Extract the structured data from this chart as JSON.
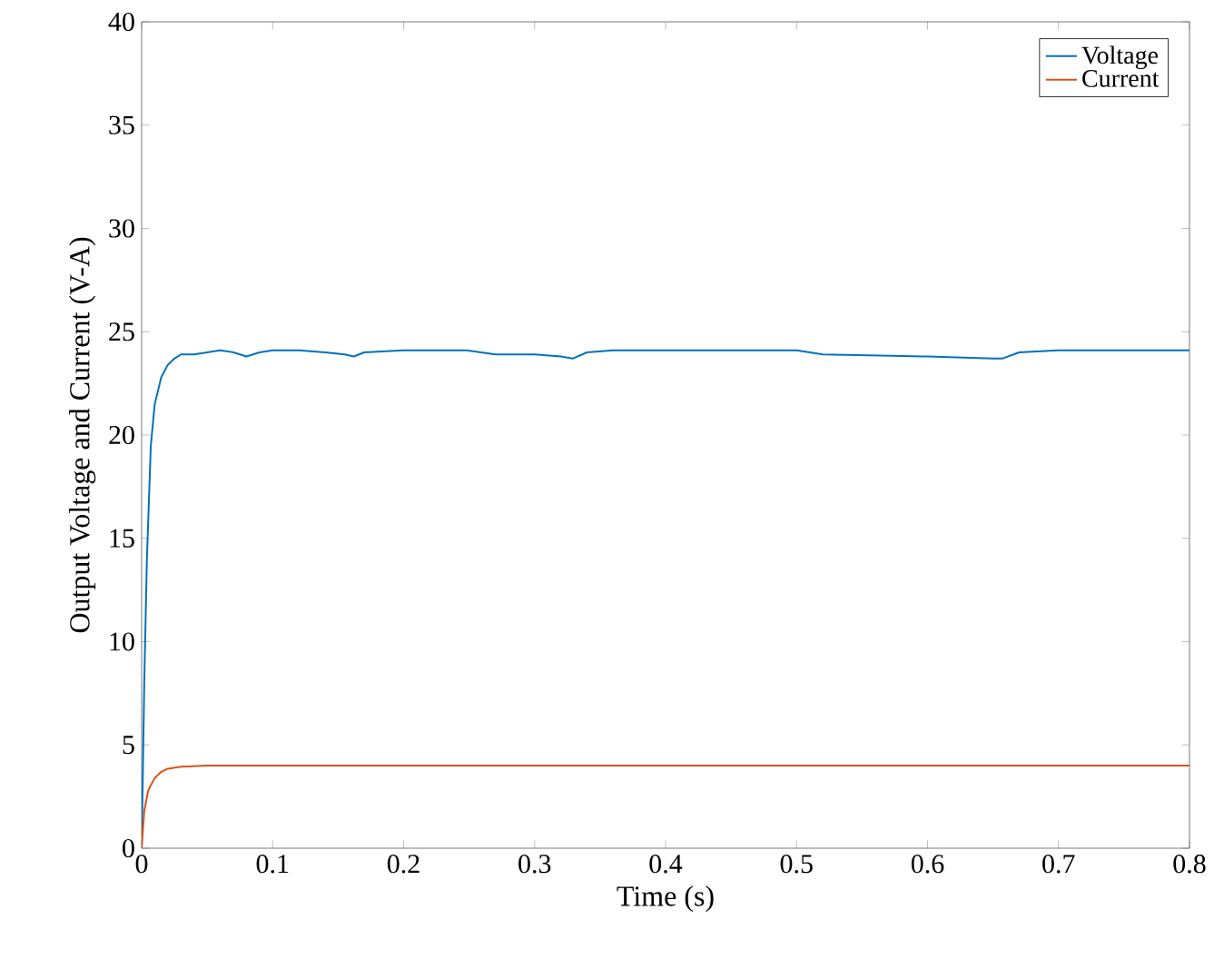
{
  "chart_data": {
    "type": "line",
    "xlabel": "Time (s)",
    "ylabel": "Output Voltage and Current (V-A)",
    "xlim": [
      0,
      0.8
    ],
    "ylim": [
      0,
      40
    ],
    "xticks": [
      0,
      0.1,
      0.2,
      0.3,
      0.4,
      0.5,
      0.6,
      0.7,
      0.8
    ],
    "yticks": [
      0,
      5,
      10,
      15,
      20,
      25,
      30,
      35,
      40
    ],
    "legend": "top right",
    "series": [
      {
        "name": "Voltage",
        "color": "#0072bd",
        "x": [
          0,
          0.002,
          0.004,
          0.007,
          0.01,
          0.015,
          0.02,
          0.025,
          0.03,
          0.04,
          0.05,
          0.06,
          0.07,
          0.08,
          0.09,
          0.1,
          0.12,
          0.14,
          0.155,
          0.162,
          0.17,
          0.2,
          0.248,
          0.27,
          0.3,
          0.32,
          0.329,
          0.34,
          0.36,
          0.4,
          0.5,
          0.52,
          0.6,
          0.65,
          0.657,
          0.67,
          0.7,
          0.8
        ],
        "values": [
          0,
          8,
          14,
          19.5,
          21.5,
          22.8,
          23.4,
          23.7,
          23.9,
          23.9,
          24.0,
          24.1,
          24.0,
          23.8,
          24.0,
          24.1,
          24.1,
          24.0,
          23.9,
          23.8,
          24.0,
          24.1,
          24.1,
          23.9,
          23.9,
          23.8,
          23.7,
          24.0,
          24.1,
          24.1,
          24.1,
          23.9,
          23.8,
          23.7,
          23.7,
          24.0,
          24.1,
          24.1
        ]
      },
      {
        "name": "Current",
        "color": "#d95319",
        "x": [
          0,
          0.002,
          0.005,
          0.01,
          0.015,
          0.02,
          0.03,
          0.05,
          0.1,
          0.2,
          0.3,
          0.4,
          0.5,
          0.6,
          0.7,
          0.8
        ],
        "values": [
          0,
          1.8,
          2.8,
          3.4,
          3.7,
          3.85,
          3.95,
          4.0,
          4.0,
          4.0,
          4.0,
          4.0,
          4.0,
          4.0,
          4.0,
          4.0
        ]
      }
    ]
  }
}
